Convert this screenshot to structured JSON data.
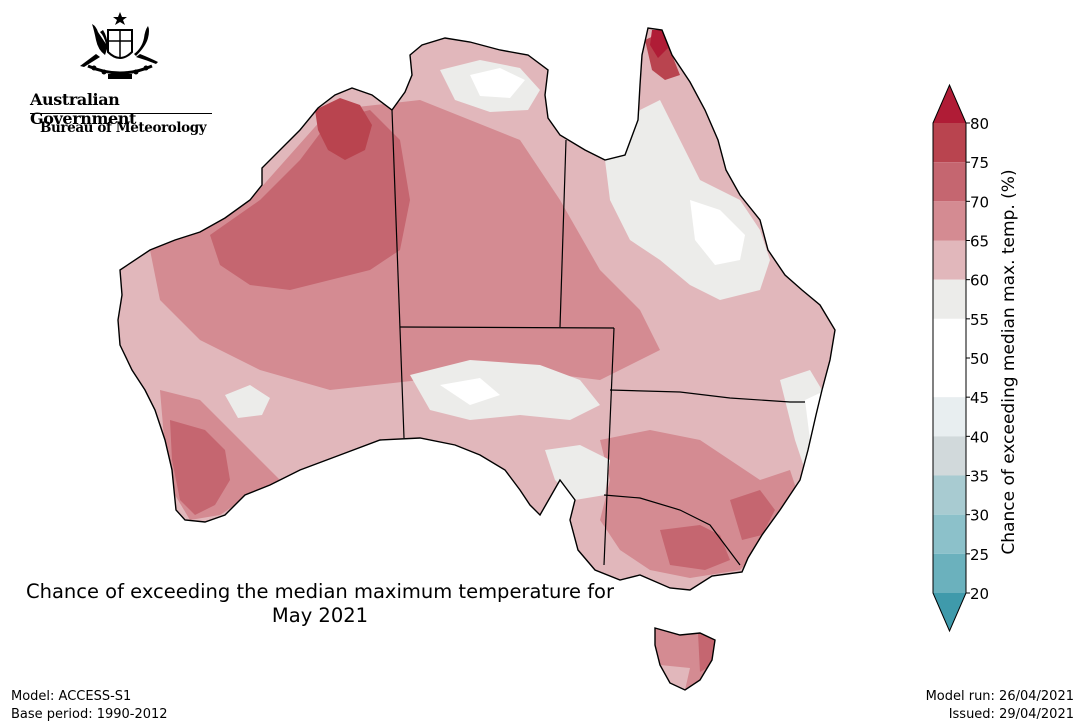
{
  "header": {
    "government": "Australian Government",
    "bureau": "Bureau of Meteorology"
  },
  "title": {
    "line1": "Chance of exceeding the median maximum temperature for",
    "line2": "May 2021"
  },
  "legend": {
    "label": "Chance of exceeding median max. temp. (%)",
    "ticks": [
      "20",
      "25",
      "30",
      "35",
      "40",
      "45",
      "50",
      "55",
      "60",
      "65",
      "70",
      "75",
      "80"
    ],
    "colors": {
      "below_20": "#3f9aab",
      "20_25": "#6bb1bd",
      "25_30": "#8cc1ca",
      "30_35": "#a8cbd1",
      "35_40": "#d1d9db",
      "40_45": "#e8eef0",
      "45_50": "#ffffff",
      "50_55": "#ffffff",
      "55_60": "#ececea",
      "60_65": "#e1b7bb",
      "65_70": "#d48b92",
      "70_75": "#c56670",
      "75_80": "#b9444f",
      "above_80": "#b01c36"
    }
  },
  "footer": {
    "model": "Model: ACCESS-S1",
    "base_period": "Base period: 1990-2012",
    "model_run": "Model run: 26/04/2021",
    "issued": "Issued: 29/04/2021"
  }
}
